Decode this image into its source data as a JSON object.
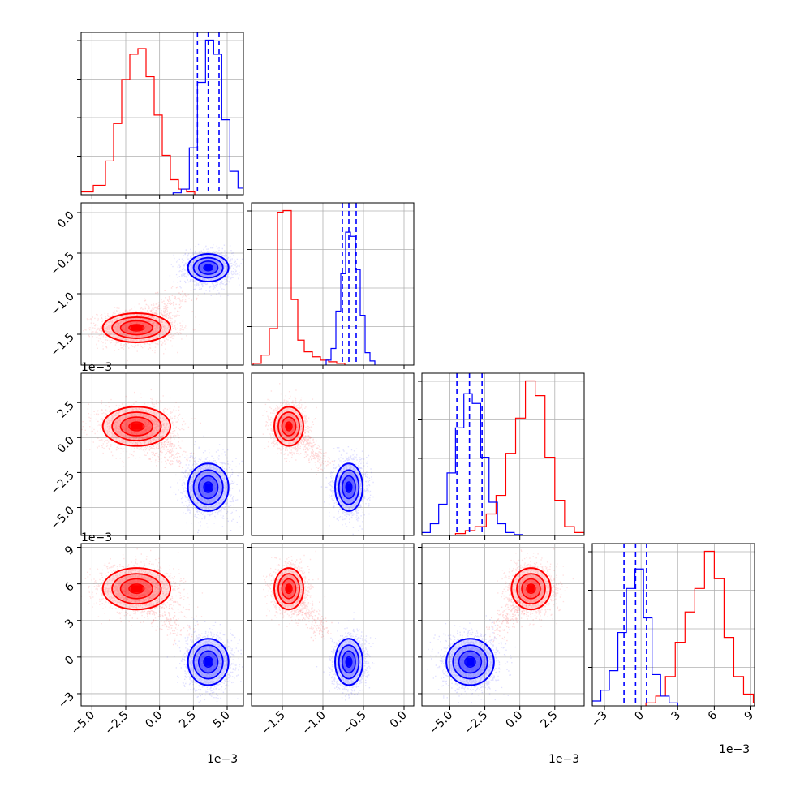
{
  "chart_data": {
    "type": "corner",
    "grid": true,
    "colors": {
      "red": "#ff0000",
      "blue": "#0000ff",
      "grid": "#b0b0b0"
    },
    "params": [
      {
        "id": "p0",
        "range": [
          -5.8,
          6.2
        ],
        "ticks": [
          -5.0,
          -2.5,
          0.0,
          2.5,
          5.0
        ],
        "tick_labels": [
          "−5.0",
          "−2.5",
          "0.0",
          "2.5",
          "5.0"
        ],
        "scale_label": "1e−3"
      },
      {
        "id": "p1",
        "range": [
          -1.88,
          0.12
        ],
        "ticks": [
          -1.5,
          -1.0,
          -0.5,
          0.0
        ],
        "tick_labels": [
          "−1.5",
          "−1.0",
          "−0.5",
          "0.0"
        ],
        "scale_label": "1e−3"
      },
      {
        "id": "p2",
        "range": [
          -7.0,
          4.6
        ],
        "ticks": [
          -5.0,
          -2.5,
          0.0,
          2.5
        ],
        "tick_labels": [
          "−5.0",
          "−2.5",
          "0.0",
          "2.5"
        ],
        "scale_label": "1e−3"
      },
      {
        "id": "p3",
        "range": [
          -4.0,
          9.3
        ],
        "ticks": [
          -3,
          0,
          3,
          6,
          9
        ],
        "tick_labels": [
          "−3",
          "0",
          "3",
          "6",
          "9"
        ],
        "scale_label": "1e−3"
      }
    ],
    "series": [
      {
        "color": "red",
        "means": [
          -1.7,
          -1.42,
          0.8,
          5.6
        ],
        "stds": [
          1.25,
          0.09,
          0.7,
          0.85
        ],
        "hist_values": [
          [
            0.3,
            1.0,
            3.6,
            7.6,
            12.3,
            15.0,
            15.6,
            12.6,
            8.5,
            4.2,
            1.6,
            0.6,
            0.3
          ],
          [
            0.2,
            1.2,
            4.4,
            18.4,
            18.6,
            7.9,
            3.0,
            1.6,
            1.0,
            0.6,
            0.4,
            0.2
          ],
          [
            0.2,
            0.5,
            0.9,
            2.2,
            4.1,
            8.4,
            12.0,
            15.8,
            14.3,
            8.0,
            3.6,
            0.9,
            0.3
          ],
          [
            0.3,
            1.0,
            3.0,
            6.5,
            9.6,
            12.0,
            15.8,
            13.0,
            7.0,
            3.0,
            1.2,
            0.3
          ]
        ],
        "hist_edges": [
          [
            -5.8,
            -4.9,
            -4.0,
            -3.4,
            -2.8,
            -2.2,
            -1.6,
            -1.0,
            -0.4,
            0.2,
            0.8,
            1.4,
            2.0,
            2.6
          ],
          [
            -1.86,
            -1.76,
            -1.66,
            -1.56,
            -1.49,
            -1.39,
            -1.31,
            -1.23,
            -1.13,
            -1.03,
            -0.93,
            -0.83,
            -0.73
          ],
          [
            -4.6,
            -3.9,
            -3.2,
            -2.4,
            -1.7,
            -1.0,
            -0.3,
            0.4,
            1.1,
            1.8,
            2.5,
            3.2,
            3.9,
            4.6
          ],
          [
            0.4,
            1.2,
            2.0,
            2.8,
            3.6,
            4.4,
            5.2,
            6.0,
            6.8,
            7.6,
            8.4,
            9.2,
            9.3
          ]
        ]
      },
      {
        "color": "blue",
        "means": [
          3.6,
          -0.68,
          -3.55,
          -0.4
        ],
        "stds": [
          0.75,
          0.085,
          0.85,
          0.95
        ],
        "quantiles": [
          [
            2.8,
            3.6,
            4.4
          ],
          [
            -0.76,
            -0.68,
            -0.59
          ],
          [
            -4.5,
            -3.6,
            -2.7
          ],
          [
            -1.4,
            -0.45,
            0.45
          ]
        ],
        "hist_values": [
          [
            0.2,
            0.6,
            5.0,
            12.0,
            16.5,
            15.0,
            8.0,
            2.5,
            0.7,
            0.2
          ],
          [
            0.6,
            2.0,
            6.5,
            11.0,
            16.0,
            15.5,
            11.5,
            6.0,
            1.5,
            0.5
          ],
          [
            0.3,
            1.2,
            3.2,
            6.4,
            11.0,
            14.5,
            13.5,
            8.0,
            3.4,
            1.2,
            0.3,
            0.1
          ],
          [
            0.5,
            1.6,
            3.6,
            7.5,
            12.0,
            14.0,
            9.0,
            3.2,
            1.0,
            0.3
          ]
        ],
        "hist_edges": [
          [
            1.0,
            1.6,
            2.2,
            2.8,
            3.4,
            4.0,
            4.6,
            5.2,
            5.8,
            6.2,
            6.2
          ],
          [
            -0.96,
            -0.9,
            -0.84,
            -0.78,
            -0.72,
            -0.66,
            -0.6,
            -0.54,
            -0.48,
            -0.42,
            -0.36
          ],
          [
            -7.0,
            -6.4,
            -5.8,
            -5.2,
            -4.6,
            -4.0,
            -3.4,
            -2.8,
            -2.2,
            -1.6,
            -1.0,
            -0.4,
            0.2
          ],
          [
            -4.0,
            -3.3,
            -2.6,
            -1.9,
            -1.2,
            -0.5,
            0.2,
            0.9,
            1.6,
            2.3,
            3.0
          ]
        ]
      }
    ],
    "bridge": {
      "from": [
        -1.7,
        -1.42,
        0.8,
        5.6
      ],
      "to": [
        3.6,
        -0.68,
        -3.55,
        -0.4
      ],
      "fraction": 0.12
    },
    "red_marginal_peak_max": [
      15.6,
      18.6,
      15.8,
      15.8
    ],
    "blue_marginal_peak_max": [
      16.5,
      16.0,
      14.5,
      14.0
    ]
  }
}
